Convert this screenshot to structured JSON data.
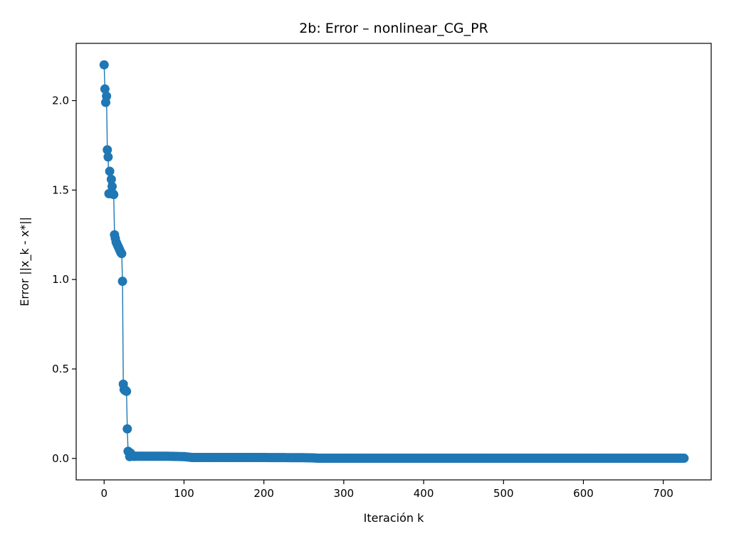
{
  "chart_data": {
    "type": "line",
    "title": "2b: Error – nonlinear_CG_PR",
    "xlabel": "Iteración k",
    "ylabel": "Error ||x_k - x*||",
    "xlim": [
      -35,
      760
    ],
    "ylim": [
      -0.12,
      2.32
    ],
    "xticks": [
      0,
      100,
      200,
      300,
      400,
      500,
      600,
      700
    ],
    "xtick_labels": [
      "0",
      "100",
      "200",
      "300",
      "400",
      "500",
      "600",
      "700"
    ],
    "yticks": [
      0.0,
      0.5,
      1.0,
      1.5,
      2.0
    ],
    "ytick_labels": [
      "0.0",
      "0.5",
      "1.0",
      "1.5",
      "2.0"
    ],
    "grid": false,
    "legend": "none",
    "series": [
      {
        "color": "#1f77b4",
        "marker": "circle",
        "x": [
          0,
          1,
          2,
          3,
          4,
          5,
          6,
          7,
          8,
          9,
          10,
          11,
          12,
          13,
          14,
          15,
          16,
          17,
          18,
          19,
          20,
          21,
          22,
          23,
          24,
          25,
          26,
          27,
          28,
          29,
          30,
          31,
          32,
          33,
          34,
          35,
          36,
          37,
          38,
          39,
          40,
          45,
          50,
          60,
          70,
          80,
          90,
          100,
          110,
          120,
          150,
          200,
          250,
          260,
          265,
          270,
          300,
          400,
          500,
          600,
          700,
          726
        ],
        "y": [
          2.2,
          2.065,
          1.99,
          2.025,
          1.725,
          1.685,
          1.48,
          1.605,
          1.48,
          1.56,
          1.52,
          1.48,
          1.475,
          1.25,
          1.23,
          1.21,
          1.2,
          1.19,
          1.18,
          1.17,
          1.16,
          1.15,
          1.145,
          0.99,
          0.415,
          0.385,
          0.38,
          0.38,
          0.375,
          0.165,
          0.04,
          0.035,
          0.01,
          0.03,
          0.015,
          0.015,
          0.012,
          0.012,
          0.012,
          0.012,
          0.012,
          0.012,
          0.012,
          0.012,
          0.012,
          0.012,
          0.011,
          0.01,
          0.005,
          0.005,
          0.005,
          0.005,
          0.004,
          0.003,
          0.002,
          0.001,
          0.001,
          0.001,
          0.001,
          0.001,
          0.001,
          0.001
        ]
      }
    ]
  }
}
